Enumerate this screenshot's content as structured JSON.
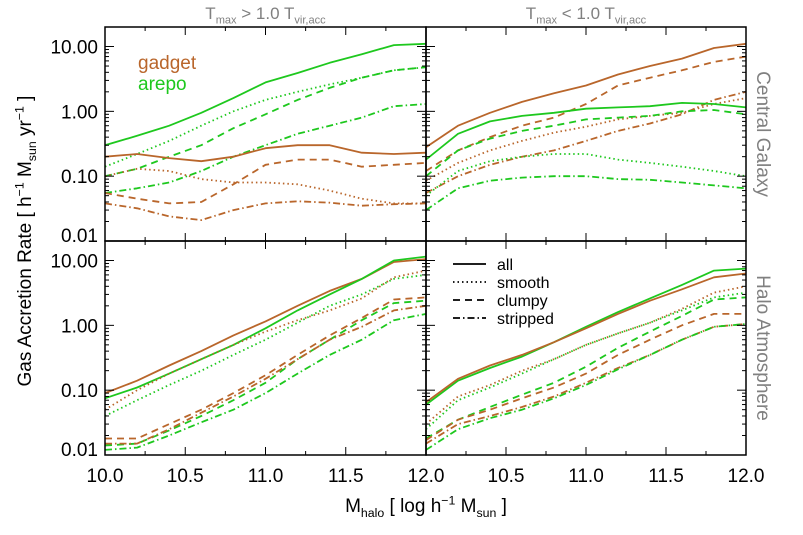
{
  "colors": {
    "gadget": "#b9662b",
    "arepo": "#1ec81e",
    "axis": "#000000",
    "panel_label": "#808080"
  },
  "column_titles": [
    [
      {
        "t": "T"
      },
      {
        "sub": "max"
      },
      {
        "t": " > 1.0 T"
      },
      {
        "sub": "vir,acc"
      }
    ],
    [
      {
        "t": "T"
      },
      {
        "sub": "max"
      },
      {
        "t": " < 1.0 T"
      },
      {
        "sub": "vir,acc"
      }
    ]
  ],
  "row_labels": [
    "Central Galaxy",
    "Halo Atmosphere"
  ],
  "ylabel": [
    {
      "t": "Gas Accretion Rate [ h"
    },
    {
      "sup": "−1"
    },
    {
      "t": " M"
    },
    {
      "sub": "sun"
    },
    {
      "t": "  yr"
    },
    {
      "sup": "−1"
    },
    {
      "t": " ]"
    }
  ],
  "xlabel": [
    {
      "t": "M"
    },
    {
      "sub": "halo"
    },
    {
      "t": " [ log h"
    },
    {
      "sup": "−1"
    },
    {
      "t": " M"
    },
    {
      "sub": "sun"
    },
    {
      "t": " ]"
    }
  ],
  "sim_legend": [
    {
      "name": "gadget",
      "color_key": "gadget"
    },
    {
      "name": "arepo",
      "color_key": "arepo"
    }
  ],
  "style_legend": [
    {
      "name": "all",
      "dash": "solid"
    },
    {
      "name": "smooth",
      "dash": "dotted"
    },
    {
      "name": "clumpy",
      "dash": "dashed"
    },
    {
      "name": "stripped",
      "dash": "dashdot"
    }
  ],
  "chart_data": {
    "type": "line",
    "yscale": "log",
    "xlim": [
      10.0,
      12.0
    ],
    "ylim": [
      0.01,
      20
    ],
    "x_tick_labels_left": [
      "10.0",
      "10.5",
      "11.0",
      "11.5"
    ],
    "x_tick_labels_right": [
      "12.0",
      "10.5",
      "11.0",
      "11.5",
      "12.0"
    ],
    "y_tick_labels": [
      "10.00",
      "1.00",
      "0.10",
      "0.01"
    ],
    "grid": false,
    "x": [
      10.0,
      10.2,
      10.4,
      10.6,
      10.8,
      11.0,
      11.2,
      11.4,
      11.6,
      11.8,
      12.0
    ],
    "panels": [
      {
        "column": 0,
        "row": 0,
        "series": [
          {
            "sim": "arepo",
            "type": "all",
            "values": [
              0.3,
              0.42,
              0.6,
              0.95,
              1.6,
              2.8,
              3.9,
              5.6,
              7.6,
              10.5,
              11
            ]
          },
          {
            "sim": "arepo",
            "type": "smooth",
            "values": [
              0.14,
              0.22,
              0.35,
              0.6,
              1.0,
              1.5,
              2.0,
              2.6,
              3.3,
              4.3,
              4.8
            ]
          },
          {
            "sim": "arepo",
            "type": "clumpy",
            "values": [
              0.1,
              0.13,
              0.2,
              0.3,
              0.55,
              0.9,
              1.5,
              2.3,
              3.3,
              4.3,
              4.8
            ]
          },
          {
            "sim": "arepo",
            "type": "stripped",
            "values": [
              0.055,
              0.065,
              0.08,
              0.12,
              0.2,
              0.3,
              0.45,
              0.6,
              0.8,
              1.2,
              1.3
            ]
          },
          {
            "sim": "gadget",
            "type": "all",
            "values": [
              0.2,
              0.22,
              0.19,
              0.17,
              0.2,
              0.27,
              0.3,
              0.3,
              0.23,
              0.22,
              0.23
            ]
          },
          {
            "sim": "gadget",
            "type": "smooth",
            "values": [
              0.1,
              0.13,
              0.12,
              0.09,
              0.08,
              0.08,
              0.075,
              0.06,
              0.045,
              0.038,
              0.038
            ]
          },
          {
            "sim": "gadget",
            "type": "clumpy",
            "values": [
              0.055,
              0.045,
              0.038,
              0.04,
              0.075,
              0.15,
              0.18,
              0.18,
              0.14,
              0.15,
              0.16
            ]
          },
          {
            "sim": "gadget",
            "type": "stripped",
            "values": [
              0.038,
              0.032,
              0.024,
              0.021,
              0.03,
              0.038,
              0.041,
              0.039,
              0.035,
              0.037,
              0.038
            ]
          }
        ]
      },
      {
        "column": 1,
        "row": 0,
        "series": [
          {
            "sim": "gadget",
            "type": "all",
            "values": [
              0.28,
              0.6,
              0.95,
              1.4,
              1.9,
              2.5,
              3.7,
              5.0,
              6.5,
              9.5,
              11
            ]
          },
          {
            "sim": "gadget",
            "type": "clumpy",
            "values": [
              0.12,
              0.25,
              0.4,
              0.6,
              0.8,
              1.3,
              2.5,
              3.3,
              4.3,
              5.8,
              7
            ]
          },
          {
            "sim": "gadget",
            "type": "smooth",
            "values": [
              0.085,
              0.16,
              0.25,
              0.35,
              0.47,
              0.58,
              0.75,
              0.85,
              0.95,
              1.3,
              1.6
            ]
          },
          {
            "sim": "gadget",
            "type": "stripped",
            "values": [
              0.055,
              0.1,
              0.15,
              0.2,
              0.25,
              0.35,
              0.5,
              0.65,
              0.9,
              1.5,
              2.0
            ]
          },
          {
            "sim": "arepo",
            "type": "all",
            "values": [
              0.18,
              0.45,
              0.7,
              0.85,
              0.95,
              1.1,
              1.15,
              1.2,
              1.35,
              1.3,
              1.15
            ]
          },
          {
            "sim": "arepo",
            "type": "clumpy",
            "values": [
              0.1,
              0.25,
              0.38,
              0.5,
              0.6,
              0.75,
              0.8,
              0.85,
              1.0,
              1.05,
              0.9
            ]
          },
          {
            "sim": "arepo",
            "type": "smooth",
            "values": [
              0.05,
              0.12,
              0.17,
              0.2,
              0.22,
              0.22,
              0.18,
              0.16,
              0.14,
              0.12,
              0.1
            ]
          },
          {
            "sim": "arepo",
            "type": "stripped",
            "values": [
              0.03,
              0.065,
              0.085,
              0.095,
              0.1,
              0.1,
              0.09,
              0.088,
              0.08,
              0.072,
              0.065
            ]
          }
        ]
      },
      {
        "column": 0,
        "row": 1,
        "series": [
          {
            "sim": "gadget",
            "type": "all",
            "values": [
              0.09,
              0.14,
              0.24,
              0.4,
              0.7,
              1.15,
              2.0,
              3.4,
              5.2,
              9.5,
              10.5
            ]
          },
          {
            "sim": "arepo",
            "type": "all",
            "values": [
              0.075,
              0.11,
              0.18,
              0.3,
              0.5,
              0.9,
              1.7,
              3.0,
              5.2,
              10,
              11.5
            ]
          },
          {
            "sim": "gadget",
            "type": "smooth",
            "values": [
              0.05,
              0.1,
              0.18,
              0.3,
              0.5,
              0.8,
              1.2,
              1.7,
              2.6,
              5.5,
              7
            ]
          },
          {
            "sim": "arepo",
            "type": "smooth",
            "values": [
              0.04,
              0.07,
              0.12,
              0.2,
              0.35,
              0.6,
              1.1,
              2.0,
              3.0,
              5.2,
              6
            ]
          },
          {
            "sim": "gadget",
            "type": "clumpy",
            "values": [
              0.018,
              0.018,
              0.03,
              0.05,
              0.09,
              0.17,
              0.35,
              0.7,
              1.3,
              2.5,
              2.7
            ]
          },
          {
            "sim": "arepo",
            "type": "clumpy",
            "values": [
              0.014,
              0.015,
              0.024,
              0.04,
              0.07,
              0.13,
              0.3,
              0.6,
              1.2,
              2.2,
              2.4
            ]
          },
          {
            "sim": "gadget",
            "type": "stripped",
            "values": [
              0.015,
              0.015,
              0.025,
              0.045,
              0.08,
              0.15,
              0.3,
              0.6,
              0.95,
              1.7,
              2.0
            ]
          },
          {
            "sim": "arepo",
            "type": "stripped",
            "values": [
              0.012,
              0.013,
              0.02,
              0.032,
              0.05,
              0.09,
              0.18,
              0.35,
              0.6,
              1.2,
              1.5
            ]
          }
        ]
      },
      {
        "column": 1,
        "row": 1,
        "series": [
          {
            "sim": "arepo",
            "type": "all",
            "values": [
              0.06,
              0.14,
              0.22,
              0.33,
              0.55,
              0.95,
              1.6,
              2.6,
              4.2,
              7,
              7.5
            ]
          },
          {
            "sim": "gadget",
            "type": "all",
            "values": [
              0.065,
              0.15,
              0.24,
              0.35,
              0.55,
              0.9,
              1.5,
              2.4,
              3.6,
              5.5,
              6.3
            ]
          },
          {
            "sim": "gadget",
            "type": "smooth",
            "values": [
              0.03,
              0.08,
              0.12,
              0.2,
              0.3,
              0.5,
              0.75,
              1.1,
              1.8,
              3.2,
              4
            ]
          },
          {
            "sim": "arepo",
            "type": "smooth",
            "values": [
              0.025,
              0.07,
              0.11,
              0.18,
              0.3,
              0.5,
              0.75,
              1.1,
              1.7,
              2.7,
              3.2
            ]
          },
          {
            "sim": "arepo",
            "type": "clumpy",
            "values": [
              0.018,
              0.035,
              0.055,
              0.085,
              0.13,
              0.23,
              0.45,
              0.8,
              1.4,
              2.5,
              2.7
            ]
          },
          {
            "sim": "gadget",
            "type": "clumpy",
            "values": [
              0.017,
              0.035,
              0.05,
              0.075,
              0.11,
              0.18,
              0.35,
              0.6,
              1.0,
              1.5,
              1.5
            ]
          },
          {
            "sim": "gadget",
            "type": "stripped",
            "values": [
              0.015,
              0.03,
              0.04,
              0.055,
              0.08,
              0.13,
              0.22,
              0.35,
              0.6,
              0.95,
              1.05
            ]
          },
          {
            "sim": "arepo",
            "type": "stripped",
            "values": [
              0.012,
              0.025,
              0.037,
              0.05,
              0.075,
              0.12,
              0.21,
              0.35,
              0.6,
              0.95,
              1.05
            ]
          }
        ]
      }
    ]
  }
}
